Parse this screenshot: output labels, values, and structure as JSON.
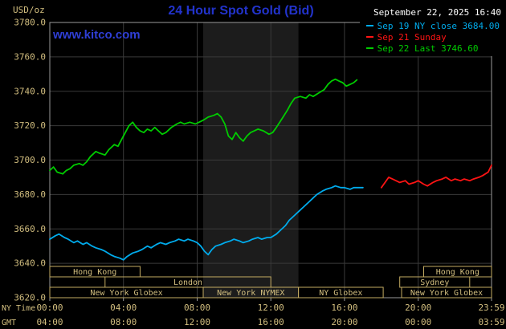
{
  "header": {
    "unit_label": "USD/oz",
    "title": "24 Hour Spot Gold (Bid)",
    "datetime": "September 22, 2025 16:40",
    "watermark": "www.kitco.com"
  },
  "legend": {
    "position": "top-right",
    "items": [
      {
        "label": "Sep 19 NY close 3684.00",
        "color": "#00abec"
      },
      {
        "label": "Sep 21 Sunday",
        "color": "#ff1414"
      },
      {
        "label": "Sep 22 Last 3746.60",
        "color": "#00cc00"
      }
    ]
  },
  "axes": {
    "ny_time_label": "NY Time",
    "gmt_label": "GMT",
    "y_ticks": [
      {
        "value": 3780,
        "label": "3780.0"
      },
      {
        "value": 3760,
        "label": "3760.0"
      },
      {
        "value": 3740,
        "label": "3740.0"
      },
      {
        "value": 3720,
        "label": "3720.0"
      },
      {
        "value": 3700,
        "label": "3700.0"
      },
      {
        "value": 3680,
        "label": "3680.0"
      },
      {
        "value": 3660,
        "label": "3660.0"
      },
      {
        "value": 3640,
        "label": "3640.0"
      },
      {
        "value": 3620,
        "label": "3620.0"
      }
    ],
    "x_ticks": [
      {
        "hour": 0,
        "ny": "00:00",
        "gmt": "04:00"
      },
      {
        "hour": 4,
        "ny": "04:00",
        "gmt": "08:00"
      },
      {
        "hour": 8,
        "ny": "08:00",
        "gmt": "12:00"
      },
      {
        "hour": 12,
        "ny": "12:00",
        "gmt": "16:00"
      },
      {
        "hour": 16,
        "ny": "16:00",
        "gmt": "20:00"
      },
      {
        "hour": 20,
        "ny": "20:00",
        "gmt": "00:00"
      },
      {
        "hour": 23.983,
        "ny": "23:59",
        "gmt": "03:59"
      }
    ]
  },
  "sessions": [
    {
      "row": 0,
      "start": 0,
      "end": 4.9,
      "label": "Hong Kong"
    },
    {
      "row": 0,
      "start": 20.3,
      "end": 23.983,
      "label": "Hong Kong"
    },
    {
      "row": 1,
      "start": 3.0,
      "end": 12.0,
      "label": "London"
    },
    {
      "row": 1,
      "start": 19.0,
      "end": 22.8,
      "label": "Sydney"
    },
    {
      "row": 2,
      "start": 0,
      "end": 8.33,
      "label": "New York Globex"
    },
    {
      "row": 2,
      "start": 8.33,
      "end": 13.5,
      "label": "New York NYMEX"
    },
    {
      "row": 2,
      "start": 13.5,
      "end": 18.1,
      "label": "NY Globex"
    },
    {
      "row": 2,
      "start": 19.1,
      "end": 23.983,
      "label": "New York Globex"
    }
  ],
  "colors": {
    "background": "#000000",
    "grid": "#3a3a3a",
    "plot_border": "#9a9a9a",
    "axis_text": "#d2be7f",
    "session_box": "#c3ab62",
    "title_blue": "#2233cc",
    "watermark_blue": "#2f3fd6",
    "datetime_white": "#ffffff",
    "nymex_band": "#1c1c1c",
    "sep19_cyan": "#00abec",
    "sep21_red": "#ff1414",
    "sep22_green": "#00cc00"
  },
  "chart_data": {
    "type": "line",
    "title": "24 Hour Spot Gold (Bid)",
    "xlabel": "NY Time (hours)",
    "ylabel": "USD/oz",
    "ylim": [
      3620,
      3780
    ],
    "xlim_hours": [
      0,
      23.983
    ],
    "grid": true,
    "legend_position": "top-right",
    "band": {
      "name": "NYMEX floor hours",
      "start": 8.33,
      "end": 13.5,
      "color": "#1c1c1c"
    },
    "series": [
      {
        "name": "Sep 19 NY close",
        "color": "#00abec",
        "close_value": 3684.0,
        "points": [
          [
            0,
            3654
          ],
          [
            0.3,
            3656
          ],
          [
            0.5,
            3657
          ],
          [
            0.8,
            3655
          ],
          [
            1,
            3654
          ],
          [
            1.3,
            3652
          ],
          [
            1.5,
            3653
          ],
          [
            1.8,
            3651
          ],
          [
            2,
            3652
          ],
          [
            2.3,
            3650
          ],
          [
            2.5,
            3649
          ],
          [
            2.8,
            3648
          ],
          [
            3,
            3647
          ],
          [
            3.3,
            3645
          ],
          [
            3.5,
            3644
          ],
          [
            3.8,
            3643
          ],
          [
            4,
            3642
          ],
          [
            4.2,
            3644
          ],
          [
            4.5,
            3646
          ],
          [
            4.8,
            3647
          ],
          [
            5,
            3648
          ],
          [
            5.3,
            3650
          ],
          [
            5.5,
            3649
          ],
          [
            5.8,
            3651
          ],
          [
            6,
            3652
          ],
          [
            6.3,
            3651
          ],
          [
            6.5,
            3652
          ],
          [
            6.8,
            3653
          ],
          [
            7,
            3654
          ],
          [
            7.3,
            3653
          ],
          [
            7.5,
            3654
          ],
          [
            7.8,
            3653
          ],
          [
            8,
            3652
          ],
          [
            8.2,
            3650
          ],
          [
            8.4,
            3647
          ],
          [
            8.6,
            3645
          ],
          [
            8.8,
            3648
          ],
          [
            9,
            3650
          ],
          [
            9.3,
            3651
          ],
          [
            9.5,
            3652
          ],
          [
            9.8,
            3653
          ],
          [
            10,
            3654
          ],
          [
            10.3,
            3653
          ],
          [
            10.5,
            3652
          ],
          [
            10.8,
            3653
          ],
          [
            11,
            3654
          ],
          [
            11.3,
            3655
          ],
          [
            11.5,
            3654
          ],
          [
            11.8,
            3655
          ],
          [
            12,
            3655
          ],
          [
            12.3,
            3657
          ],
          [
            12.5,
            3659
          ],
          [
            12.8,
            3662
          ],
          [
            13,
            3665
          ],
          [
            13.3,
            3668
          ],
          [
            13.5,
            3670
          ],
          [
            13.8,
            3673
          ],
          [
            14,
            3675
          ],
          [
            14.3,
            3678
          ],
          [
            14.5,
            3680
          ],
          [
            14.8,
            3682
          ],
          [
            15,
            3683
          ],
          [
            15.3,
            3684
          ],
          [
            15.5,
            3685
          ],
          [
            15.8,
            3684
          ],
          [
            16,
            3684
          ],
          [
            16.3,
            3683
          ],
          [
            16.5,
            3684
          ],
          [
            16.8,
            3684
          ],
          [
            17,
            3684
          ]
        ]
      },
      {
        "name": "Sep 21 Sunday",
        "color": "#ff1414",
        "points": [
          [
            18,
            3684
          ],
          [
            18.2,
            3687
          ],
          [
            18.4,
            3690
          ],
          [
            18.6,
            3689
          ],
          [
            18.8,
            3688
          ],
          [
            19,
            3687
          ],
          [
            19.3,
            3688
          ],
          [
            19.5,
            3686
          ],
          [
            19.8,
            3687
          ],
          [
            20,
            3688
          ],
          [
            20.3,
            3686
          ],
          [
            20.5,
            3685
          ],
          [
            20.8,
            3687
          ],
          [
            21,
            3688
          ],
          [
            21.3,
            3689
          ],
          [
            21.5,
            3690
          ],
          [
            21.8,
            3688
          ],
          [
            22,
            3689
          ],
          [
            22.3,
            3688
          ],
          [
            22.5,
            3689
          ],
          [
            22.8,
            3688
          ],
          [
            23,
            3689
          ],
          [
            23.3,
            3690
          ],
          [
            23.5,
            3691
          ],
          [
            23.8,
            3693
          ],
          [
            23.983,
            3697
          ]
        ]
      },
      {
        "name": "Sep 22 Last",
        "color": "#00cc00",
        "last_value": 3746.6,
        "points": [
          [
            0,
            3694
          ],
          [
            0.2,
            3696
          ],
          [
            0.4,
            3693
          ],
          [
            0.7,
            3692
          ],
          [
            0.9,
            3694
          ],
          [
            1.1,
            3695
          ],
          [
            1.3,
            3697
          ],
          [
            1.6,
            3698
          ],
          [
            1.8,
            3697
          ],
          [
            2,
            3699
          ],
          [
            2.2,
            3702
          ],
          [
            2.5,
            3705
          ],
          [
            2.7,
            3704
          ],
          [
            3,
            3703
          ],
          [
            3.2,
            3706
          ],
          [
            3.5,
            3709
          ],
          [
            3.7,
            3708
          ],
          [
            3.9,
            3712
          ],
          [
            4.1,
            3716
          ],
          [
            4.3,
            3720
          ],
          [
            4.5,
            3722
          ],
          [
            4.7,
            3719
          ],
          [
            4.9,
            3717
          ],
          [
            5.1,
            3716
          ],
          [
            5.3,
            3718
          ],
          [
            5.5,
            3717
          ],
          [
            5.7,
            3719
          ],
          [
            5.9,
            3717
          ],
          [
            6.1,
            3715
          ],
          [
            6.3,
            3716
          ],
          [
            6.6,
            3719
          ],
          [
            6.9,
            3721
          ],
          [
            7.1,
            3722
          ],
          [
            7.3,
            3721
          ],
          [
            7.6,
            3722
          ],
          [
            7.9,
            3721
          ],
          [
            8.1,
            3722
          ],
          [
            8.3,
            3723
          ],
          [
            8.6,
            3725
          ],
          [
            8.9,
            3726
          ],
          [
            9.1,
            3727
          ],
          [
            9.3,
            3725
          ],
          [
            9.5,
            3721
          ],
          [
            9.7,
            3714
          ],
          [
            9.9,
            3712
          ],
          [
            10.1,
            3716
          ],
          [
            10.3,
            3713
          ],
          [
            10.5,
            3711
          ],
          [
            10.7,
            3714
          ],
          [
            10.9,
            3716
          ],
          [
            11.1,
            3717
          ],
          [
            11.3,
            3718
          ],
          [
            11.6,
            3717
          ],
          [
            11.9,
            3715
          ],
          [
            12.1,
            3716
          ],
          [
            12.3,
            3719
          ],
          [
            12.6,
            3724
          ],
          [
            12.9,
            3729
          ],
          [
            13.1,
            3733
          ],
          [
            13.3,
            3736
          ],
          [
            13.6,
            3737
          ],
          [
            13.9,
            3736
          ],
          [
            14.1,
            3738
          ],
          [
            14.3,
            3737
          ],
          [
            14.6,
            3739
          ],
          [
            14.9,
            3741
          ],
          [
            15.1,
            3744
          ],
          [
            15.3,
            3746
          ],
          [
            15.5,
            3747
          ],
          [
            15.7,
            3746
          ],
          [
            15.9,
            3745
          ],
          [
            16.1,
            3743
          ],
          [
            16.3,
            3744
          ],
          [
            16.5,
            3745
          ],
          [
            16.67,
            3746.6
          ]
        ]
      }
    ]
  }
}
